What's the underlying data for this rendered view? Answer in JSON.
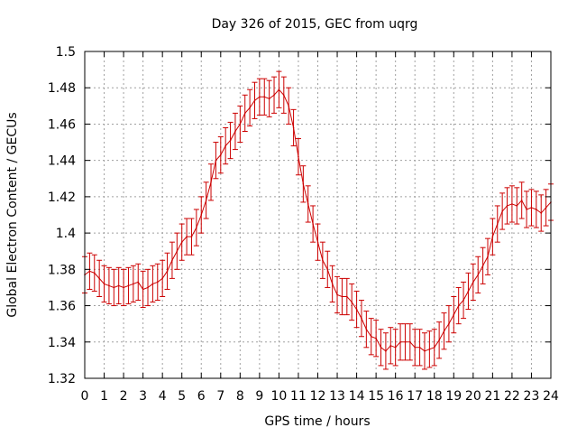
{
  "chart_data": {
    "type": "line",
    "title": "Day 326 of 2015, GEC from uqrg",
    "xlabel": "GPS time / hours",
    "ylabel": "Global Electron Content / GECUs",
    "xlim": [
      0,
      24
    ],
    "ylim": [
      1.32,
      1.5
    ],
    "x_ticks": [
      "0",
      "1",
      "2",
      "3",
      "4",
      "5",
      "6",
      "7",
      "8",
      "9",
      "10",
      "11",
      "12",
      "13",
      "14",
      "15",
      "16",
      "17",
      "18",
      "19",
      "20",
      "21",
      "22",
      "23",
      "24"
    ],
    "y_ticks": [
      "1.32",
      "1.34",
      "1.36",
      "1.38",
      "1.4",
      "1.42",
      "1.44",
      "1.46",
      "1.48",
      "1.5"
    ],
    "grid": true,
    "legend": "none",
    "series_color": "#cc0000",
    "error_bar_halfwidth": 0.01,
    "series": [
      {
        "x": [
          0,
          0.25,
          0.5,
          0.75,
          1,
          1.25,
          1.5,
          1.75,
          2,
          2.25,
          2.5,
          2.75,
          3,
          3.25,
          3.5,
          3.75,
          4,
          4.25,
          4.5,
          4.75,
          5,
          5.25,
          5.5,
          5.75,
          6,
          6.25,
          6.5,
          6.75,
          7,
          7.25,
          7.5,
          7.75,
          8,
          8.25,
          8.5,
          8.75,
          9,
          9.25,
          9.5,
          9.75,
          10,
          10.25,
          10.5,
          10.75,
          11,
          11.25,
          11.5,
          11.75,
          12,
          12.25,
          12.5,
          12.75,
          13,
          13.25,
          13.5,
          13.75,
          14,
          14.25,
          14.5,
          14.75,
          15,
          15.25,
          15.5,
          15.75,
          16,
          16.25,
          16.5,
          16.75,
          17,
          17.25,
          17.5,
          17.75,
          18,
          18.25,
          18.5,
          18.75,
          19,
          19.25,
          19.5,
          19.75,
          20,
          20.25,
          20.5,
          20.75,
          21,
          21.25,
          21.5,
          21.75,
          22,
          22.25,
          22.5,
          22.75,
          23,
          23.25,
          23.5,
          23.75,
          24
        ],
        "y": [
          1.377,
          1.379,
          1.378,
          1.375,
          1.372,
          1.371,
          1.37,
          1.371,
          1.37,
          1.371,
          1.372,
          1.373,
          1.369,
          1.37,
          1.372,
          1.373,
          1.375,
          1.379,
          1.385,
          1.39,
          1.395,
          1.398,
          1.398,
          1.403,
          1.41,
          1.418,
          1.428,
          1.44,
          1.443,
          1.448,
          1.451,
          1.456,
          1.46,
          1.466,
          1.469,
          1.473,
          1.475,
          1.475,
          1.474,
          1.476,
          1.479,
          1.476,
          1.47,
          1.458,
          1.442,
          1.427,
          1.416,
          1.405,
          1.395,
          1.385,
          1.38,
          1.372,
          1.366,
          1.365,
          1.365,
          1.362,
          1.358,
          1.353,
          1.347,
          1.343,
          1.342,
          1.337,
          1.335,
          1.338,
          1.337,
          1.34,
          1.34,
          1.34,
          1.337,
          1.337,
          1.335,
          1.336,
          1.337,
          1.341,
          1.346,
          1.35,
          1.355,
          1.36,
          1.363,
          1.368,
          1.373,
          1.377,
          1.382,
          1.387,
          1.398,
          1.405,
          1.412,
          1.415,
          1.416,
          1.415,
          1.418,
          1.413,
          1.414,
          1.413,
          1.411,
          1.414,
          1.417
        ]
      }
    ]
  }
}
